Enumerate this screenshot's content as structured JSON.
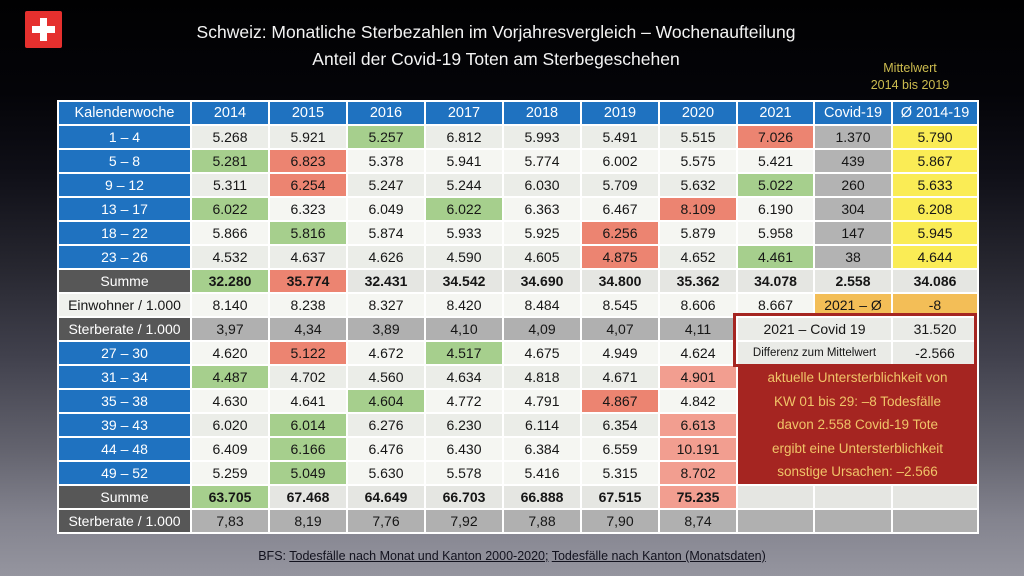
{
  "title": {
    "line1": "Schweiz: Monatliche Sterbezahlen im Vorjahresvergleich – Wochenaufteilung",
    "line2": "Anteil der Covid-19 Toten am Sterbegeschehen"
  },
  "mittelwert_note": {
    "line1": "Mittelwert",
    "line2": "2014 bis 2019"
  },
  "colors": {
    "header_blue": "#1F72C0",
    "label_dark_gray": "#575757",
    "cell_green": "#A6CF8D",
    "cell_red": "#EC8471",
    "cell_red_light": "#F29E90",
    "covid_col_gray": "#B3B3B3",
    "avg_col_yellow": "#FAEC55",
    "highlight_orange": "#F3BE57",
    "note_box_red": "#A52521",
    "note_text_gold": "#F0C468",
    "flag_red": "#E5302E"
  },
  "red_note_lines": [
    "aktuelle Untersterblichkeit von",
    "KW 01 bis 29: –8 Todesfälle",
    "davon 2.558 Covid-19 Tote",
    "ergibt eine Untersterblichkeit",
    "sonstige Ursachen: –2.566"
  ],
  "footer": {
    "prefix": "BFS: ",
    "link1": "Todesfälle nach Monat und Kanton 2000-2020;",
    "link2": "Todesfälle nach Kanton (Monatsdaten)"
  },
  "table": {
    "columns": [
      "Kalenderwoche",
      "2014",
      "2015",
      "2016",
      "2017",
      "2018",
      "2019",
      "2020",
      "2021",
      "Covid-19",
      "Ø 2014-19"
    ],
    "rows": [
      {
        "label": "1 – 4",
        "lc": "kw",
        "alt": "a",
        "cells": [
          [
            "5.268",
            ""
          ],
          [
            "5.921",
            ""
          ],
          [
            "5.257",
            "g"
          ],
          [
            "6.812",
            ""
          ],
          [
            "5.993",
            ""
          ],
          [
            "5.491",
            ""
          ],
          [
            "5.515",
            ""
          ],
          [
            "7.026",
            "r"
          ],
          [
            "1.370",
            "cv"
          ],
          [
            "5.790",
            "y"
          ]
        ]
      },
      {
        "label": "5 – 8",
        "lc": "kw",
        "alt": "b",
        "cells": [
          [
            "5.281",
            "g"
          ],
          [
            "6.823",
            "r"
          ],
          [
            "5.378",
            ""
          ],
          [
            "5.941",
            ""
          ],
          [
            "5.774",
            ""
          ],
          [
            "6.002",
            ""
          ],
          [
            "5.575",
            ""
          ],
          [
            "5.421",
            ""
          ],
          [
            "439",
            "cv"
          ],
          [
            "5.867",
            "y"
          ]
        ]
      },
      {
        "label": "9 – 12",
        "lc": "kw",
        "alt": "a",
        "cells": [
          [
            "5.311",
            ""
          ],
          [
            "6.254",
            "r"
          ],
          [
            "5.247",
            ""
          ],
          [
            "5.244",
            ""
          ],
          [
            "6.030",
            ""
          ],
          [
            "5.709",
            ""
          ],
          [
            "5.632",
            ""
          ],
          [
            "5.022",
            "g"
          ],
          [
            "260",
            "cv"
          ],
          [
            "5.633",
            "y"
          ]
        ]
      },
      {
        "label": "13 – 17",
        "lc": "kw",
        "alt": "b",
        "cells": [
          [
            "6.022",
            "g"
          ],
          [
            "6.323",
            ""
          ],
          [
            "6.049",
            ""
          ],
          [
            "6.022",
            "g"
          ],
          [
            "6.363",
            ""
          ],
          [
            "6.467",
            ""
          ],
          [
            "8.109",
            "r"
          ],
          [
            "6.190",
            ""
          ],
          [
            "304",
            "cv"
          ],
          [
            "6.208",
            "y"
          ]
        ]
      },
      {
        "label": "18 – 22",
        "lc": "kw",
        "alt": "b",
        "cells": [
          [
            "5.866",
            ""
          ],
          [
            "5.816",
            "g"
          ],
          [
            "5.874",
            ""
          ],
          [
            "5.933",
            ""
          ],
          [
            "5.925",
            ""
          ],
          [
            "6.256",
            "r"
          ],
          [
            "5.879",
            ""
          ],
          [
            "5.958",
            ""
          ],
          [
            "147",
            "cv"
          ],
          [
            "5.945",
            "y"
          ]
        ]
      },
      {
        "label": "23 – 26",
        "lc": "kw",
        "alt": "a",
        "cells": [
          [
            "4.532",
            ""
          ],
          [
            "4.637",
            ""
          ],
          [
            "4.626",
            ""
          ],
          [
            "4.590",
            ""
          ],
          [
            "4.605",
            ""
          ],
          [
            "4.875",
            "r"
          ],
          [
            "4.652",
            ""
          ],
          [
            "4.461",
            "g"
          ],
          [
            "38",
            "cv"
          ],
          [
            "4.644",
            "y"
          ]
        ]
      },
      {
        "label": "Summe",
        "lc": "dark",
        "sum": true,
        "cells": [
          [
            "32.280",
            "g"
          ],
          [
            "35.774",
            "r"
          ],
          [
            "32.431",
            "su"
          ],
          [
            "34.542",
            "su"
          ],
          [
            "34.690",
            "su"
          ],
          [
            "34.800",
            "su"
          ],
          [
            "35.362",
            "su"
          ],
          [
            "34.078",
            "su"
          ],
          [
            "2.558",
            "su"
          ],
          [
            "34.086",
            "su"
          ]
        ]
      },
      {
        "label": "Einwohner / 1.000",
        "lc": "plainlbl",
        "alt": "b",
        "cells": [
          [
            "8.140",
            ""
          ],
          [
            "8.238",
            ""
          ],
          [
            "8.327",
            ""
          ],
          [
            "8.420",
            ""
          ],
          [
            "8.484",
            ""
          ],
          [
            "8.545",
            ""
          ],
          [
            "8.606",
            ""
          ],
          [
            "8.667",
            ""
          ],
          [
            "2021 – Ø",
            "o"
          ],
          [
            "-8",
            "o"
          ]
        ]
      },
      {
        "label": "Sterberate / 1.000",
        "lc": "dark",
        "cells": [
          [
            "3,97",
            "ra"
          ],
          [
            "4,34",
            "ra"
          ],
          [
            "3,89",
            "ra"
          ],
          [
            "4,10",
            "ra"
          ],
          [
            "4,09",
            "ra"
          ],
          [
            "4,07",
            "ra"
          ],
          [
            "4,11",
            "ra"
          ],
          [
            "2021 – Covid 19",
            "bx",
            2
          ],
          [
            "31.520",
            "bx"
          ]
        ]
      },
      {
        "label": "27 – 30",
        "lc": "kw",
        "alt": "b",
        "cells": [
          [
            "4.620",
            ""
          ],
          [
            "5.122",
            "r"
          ],
          [
            "4.672",
            ""
          ],
          [
            "4.517",
            "g"
          ],
          [
            "4.675",
            ""
          ],
          [
            "4.949",
            ""
          ],
          [
            "4.624",
            ""
          ],
          [
            "Differenz zum Mittelwert",
            "bx sm",
            2
          ],
          [
            "-2.566",
            "bx"
          ]
        ]
      },
      {
        "label": "31 – 34",
        "lc": "kw",
        "alt": "a",
        "redbox": true,
        "cells": [
          [
            "4.487",
            "g"
          ],
          [
            "4.702",
            ""
          ],
          [
            "4.560",
            ""
          ],
          [
            "4.634",
            ""
          ],
          [
            "4.818",
            ""
          ],
          [
            "4.671",
            ""
          ],
          [
            "4.901",
            "r2"
          ]
        ]
      },
      {
        "label": "35 – 38",
        "lc": "kw",
        "alt": "b",
        "cells": [
          [
            "4.630",
            ""
          ],
          [
            "4.641",
            ""
          ],
          [
            "4.604",
            "g"
          ],
          [
            "4.772",
            ""
          ],
          [
            "4.791",
            ""
          ],
          [
            "4.867",
            "r"
          ],
          [
            "4.842",
            ""
          ]
        ]
      },
      {
        "label": "39 – 43",
        "lc": "kw",
        "alt": "a",
        "cells": [
          [
            "6.020",
            ""
          ],
          [
            "6.014",
            "g"
          ],
          [
            "6.276",
            ""
          ],
          [
            "6.230",
            ""
          ],
          [
            "6.114",
            ""
          ],
          [
            "6.354",
            ""
          ],
          [
            "6.613",
            "r2"
          ]
        ]
      },
      {
        "label": "44 – 48",
        "lc": "kw",
        "alt": "b",
        "cells": [
          [
            "6.409",
            ""
          ],
          [
            "6.166",
            "g"
          ],
          [
            "6.476",
            ""
          ],
          [
            "6.430",
            ""
          ],
          [
            "6.384",
            ""
          ],
          [
            "6.559",
            ""
          ],
          [
            "10.191",
            "r2"
          ]
        ]
      },
      {
        "label": "49 – 52",
        "lc": "kw",
        "alt": "b",
        "cells": [
          [
            "5.259",
            ""
          ],
          [
            "5.049",
            "g"
          ],
          [
            "5.630",
            ""
          ],
          [
            "5.578",
            ""
          ],
          [
            "5.416",
            ""
          ],
          [
            "5.315",
            ""
          ],
          [
            "8.702",
            "r2"
          ]
        ]
      },
      {
        "label": "Summe",
        "lc": "dark",
        "sum": true,
        "cells": [
          [
            "63.705",
            "g"
          ],
          [
            "67.468",
            "su"
          ],
          [
            "64.649",
            "su"
          ],
          [
            "66.703",
            "su"
          ],
          [
            "66.888",
            "su"
          ],
          [
            "67.515",
            "su"
          ],
          [
            "75.235",
            "r2"
          ],
          [
            "",
            "su"
          ],
          [
            "",
            "su"
          ],
          [
            "",
            "su"
          ]
        ]
      },
      {
        "label": "Sterberate / 1.000",
        "lc": "dark",
        "cells": [
          [
            "7,83",
            "ra"
          ],
          [
            "8,19",
            "ra"
          ],
          [
            "7,76",
            "ra"
          ],
          [
            "7,92",
            "ra"
          ],
          [
            "7,88",
            "ra"
          ],
          [
            "7,90",
            "ra"
          ],
          [
            "8,74",
            "ra"
          ],
          [
            "",
            "ra"
          ],
          [
            "",
            "ra"
          ],
          [
            "",
            "ra"
          ]
        ]
      }
    ]
  },
  "chart_data": {
    "type": "table",
    "title": "Schweiz: Monatliche Sterbezahlen im Vorjahresvergleich – Wochenaufteilung / Anteil der Covid-19 Toten am Sterbegeschehen",
    "columns": [
      "Kalenderwoche",
      "2014",
      "2015",
      "2016",
      "2017",
      "2018",
      "2019",
      "2020",
      "2021",
      "Covid-19",
      "Ø 2014-19"
    ],
    "rows": [
      {
        "label": "1 – 4",
        "values": [
          "5.268",
          "5.921",
          "5.257",
          "6.812",
          "5.993",
          "5.491",
          "5.515",
          "7.026",
          "1.370",
          "5.790"
        ]
      },
      {
        "label": "5 – 8",
        "values": [
          "5.281",
          "6.823",
          "5.378",
          "5.941",
          "5.774",
          "6.002",
          "5.575",
          "5.421",
          "439",
          "5.867"
        ]
      },
      {
        "label": "9 – 12",
        "values": [
          "5.311",
          "6.254",
          "5.247",
          "5.244",
          "6.030",
          "5.709",
          "5.632",
          "5.022",
          "260",
          "5.633"
        ]
      },
      {
        "label": "13 – 17",
        "values": [
          "6.022",
          "6.323",
          "6.049",
          "6.022",
          "6.363",
          "6.467",
          "8.109",
          "6.190",
          "304",
          "6.208"
        ]
      },
      {
        "label": "18 – 22",
        "values": [
          "5.866",
          "5.816",
          "5.874",
          "5.933",
          "5.925",
          "6.256",
          "5.879",
          "5.958",
          "147",
          "5.945"
        ]
      },
      {
        "label": "23 – 26",
        "values": [
          "4.532",
          "4.637",
          "4.626",
          "4.590",
          "4.605",
          "4.875",
          "4.652",
          "4.461",
          "38",
          "4.644"
        ]
      },
      {
        "label": "Summe",
        "values": [
          "32.280",
          "35.774",
          "32.431",
          "34.542",
          "34.690",
          "34.800",
          "35.362",
          "34.078",
          "2.558",
          "34.086"
        ]
      },
      {
        "label": "Einwohner / 1.000",
        "values": [
          "8.140",
          "8.238",
          "8.327",
          "8.420",
          "8.484",
          "8.545",
          "8.606",
          "8.667",
          "2021 – Ø",
          "-8"
        ]
      },
      {
        "label": "Sterberate / 1.000",
        "values": [
          "3,97",
          "4,34",
          "3,89",
          "4,10",
          "4,09",
          "4,07",
          "4,11",
          "2021 – Covid 19",
          "31.520"
        ]
      },
      {
        "label": "27 – 30",
        "values": [
          "4.620",
          "5.122",
          "4.672",
          "4.517",
          "4.675",
          "4.949",
          "4.624",
          "Differenz zum Mittelwert",
          "-2.566"
        ]
      },
      {
        "label": "31 – 34",
        "values": [
          "4.487",
          "4.702",
          "4.560",
          "4.634",
          "4.818",
          "4.671",
          "4.901"
        ]
      },
      {
        "label": "35 – 38",
        "values": [
          "4.630",
          "4.641",
          "4.604",
          "4.772",
          "4.791",
          "4.867",
          "4.842"
        ]
      },
      {
        "label": "39 – 43",
        "values": [
          "6.020",
          "6.014",
          "6.276",
          "6.230",
          "6.114",
          "6.354",
          "6.613"
        ]
      },
      {
        "label": "44 – 48",
        "values": [
          "6.409",
          "6.166",
          "6.476",
          "6.430",
          "6.384",
          "6.559",
          "10.191"
        ]
      },
      {
        "label": "49 – 52",
        "values": [
          "5.259",
          "5.049",
          "5.630",
          "5.578",
          "5.416",
          "5.315",
          "8.702"
        ]
      },
      {
        "label": "Summe",
        "values": [
          "63.705",
          "67.468",
          "64.649",
          "66.703",
          "66.888",
          "67.515",
          "75.235"
        ]
      },
      {
        "label": "Sterberate / 1.000",
        "values": [
          "7,83",
          "8,19",
          "7,76",
          "7,92",
          "7,88",
          "7,90",
          "8,74"
        ]
      }
    ]
  }
}
